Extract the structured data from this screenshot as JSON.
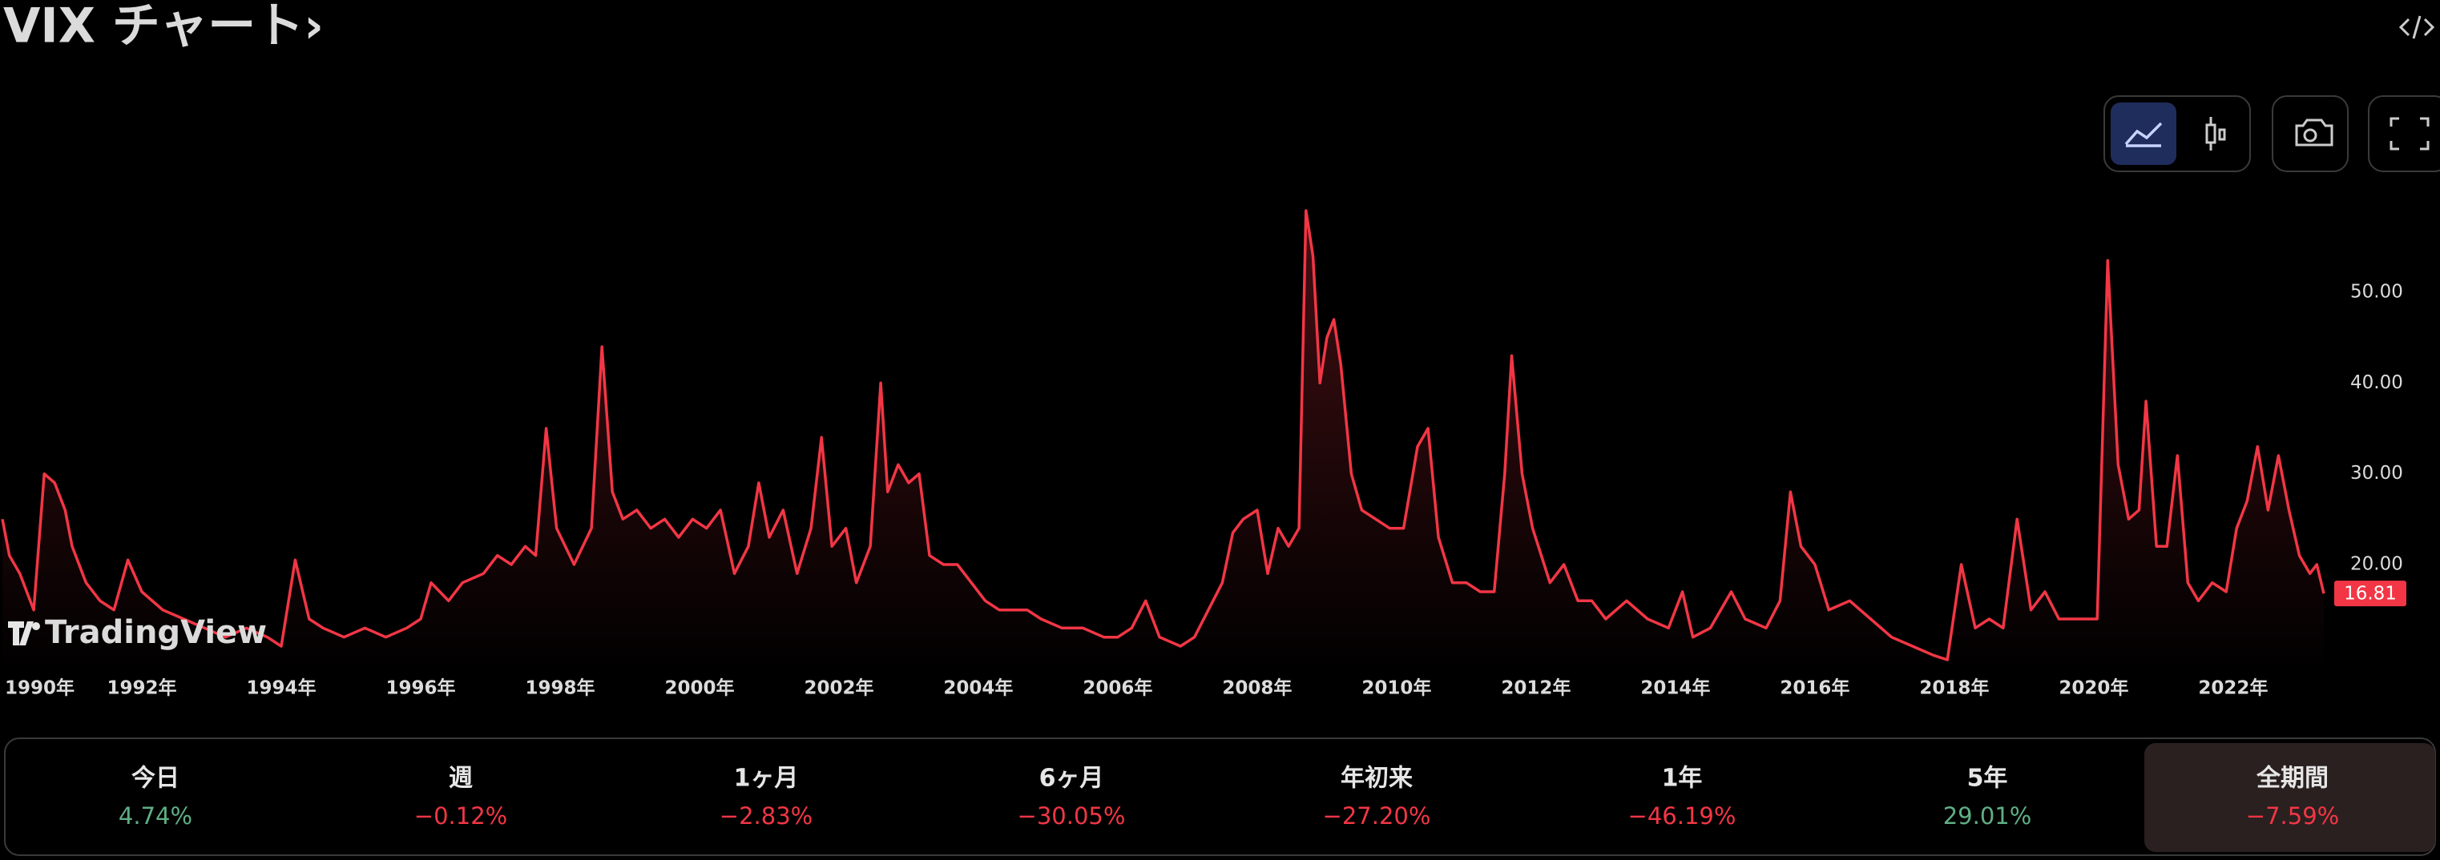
{
  "chart_data": {
    "type": "line",
    "title": "VIX チャート›",
    "watermark": "TradingView",
    "x": [
      1990.0,
      1990.1,
      1990.25,
      1990.45,
      1990.6,
      1990.75,
      1990.9,
      1991.0,
      1991.2,
      1991.4,
      1991.6,
      1991.8,
      1992.0,
      1992.3,
      1992.6,
      1992.9,
      1993.2,
      1993.5,
      1993.8,
      1994.0,
      1994.2,
      1994.4,
      1994.6,
      1994.9,
      1995.2,
      1995.5,
      1995.8,
      1996.0,
      1996.15,
      1996.4,
      1996.6,
      1996.9,
      1997.1,
      1997.3,
      1997.5,
      1997.65,
      1997.8,
      1997.95,
      1998.2,
      1998.45,
      1998.6,
      1998.75,
      1998.9,
      1999.1,
      1999.3,
      1999.5,
      1999.7,
      1999.9,
      2000.1,
      2000.3,
      2000.5,
      2000.7,
      2000.85,
      2001.0,
      2001.2,
      2001.4,
      2001.6,
      2001.75,
      2001.9,
      2002.1,
      2002.25,
      2002.45,
      2002.6,
      2002.7,
      2002.85,
      2003.0,
      2003.15,
      2003.3,
      2003.5,
      2003.7,
      2003.9,
      2004.1,
      2004.3,
      2004.5,
      2004.7,
      2004.9,
      2005.2,
      2005.5,
      2005.8,
      2006.0,
      2006.2,
      2006.4,
      2006.6,
      2006.9,
      2007.1,
      2007.3,
      2007.5,
      2007.65,
      2007.8,
      2008.0,
      2008.15,
      2008.3,
      2008.45,
      2008.6,
      2008.7,
      2008.8,
      2008.9,
      2009.0,
      2009.1,
      2009.2,
      2009.35,
      2009.5,
      2009.7,
      2009.9,
      2010.1,
      2010.3,
      2010.45,
      2010.6,
      2010.8,
      2011.0,
      2011.2,
      2011.4,
      2011.55,
      2011.65,
      2011.8,
      2011.95,
      2012.2,
      2012.4,
      2012.6,
      2012.8,
      2013.0,
      2013.3,
      2013.6,
      2013.9,
      2014.1,
      2014.25,
      2014.5,
      2014.8,
      2015.0,
      2015.3,
      2015.5,
      2015.65,
      2015.8,
      2016.0,
      2016.2,
      2016.5,
      2016.8,
      2017.1,
      2017.4,
      2017.7,
      2017.9,
      2018.1,
      2018.3,
      2018.5,
      2018.7,
      2018.9,
      2019.1,
      2019.3,
      2019.5,
      2019.7,
      2019.9,
      2020.05,
      2020.2,
      2020.35,
      2020.5,
      2020.65,
      2020.75,
      2020.9,
      2021.05,
      2021.2,
      2021.35,
      2021.5,
      2021.7,
      2021.9,
      2022.05,
      2022.2,
      2022.35,
      2022.5,
      2022.65,
      2022.8,
      2022.95,
      2023.1,
      2023.2,
      2023.3
    ],
    "series": [
      {
        "name": "VIX",
        "color": "#f23645",
        "values": [
          25,
          21,
          19,
          15,
          30,
          29,
          26,
          22,
          18,
          16,
          15,
          20.5,
          17,
          15,
          14,
          13,
          12,
          13,
          12,
          11,
          20.5,
          14,
          13,
          12,
          13,
          12,
          13,
          14,
          18,
          16,
          18,
          19,
          21,
          20,
          22,
          21,
          35,
          24,
          20,
          24,
          44,
          28,
          25,
          26,
          24,
          25,
          23,
          25,
          24,
          26,
          19,
          22,
          29,
          23,
          26,
          19,
          24,
          34,
          22,
          24,
          18,
          22,
          40,
          28,
          31,
          29,
          30,
          21,
          20,
          20,
          18,
          16,
          15,
          15,
          15,
          14,
          13,
          13,
          12,
          12,
          13,
          16,
          12,
          11,
          12,
          15,
          18,
          23.5,
          25,
          26,
          19,
          24,
          22,
          24,
          59,
          54,
          40,
          45,
          47,
          42,
          30,
          26,
          25,
          24,
          24,
          33,
          35,
          23,
          18,
          18,
          17,
          17,
          30,
          43,
          30,
          24,
          18,
          20,
          16,
          16,
          14,
          16,
          14,
          13,
          17,
          12,
          13,
          17,
          14,
          13,
          16,
          28,
          22,
          20,
          15,
          16,
          14,
          12,
          11,
          10,
          9.5,
          20,
          13,
          14,
          13,
          25,
          15,
          17,
          14,
          14,
          14,
          14,
          53.5,
          31,
          25,
          26,
          38,
          22,
          22,
          32,
          18,
          16,
          18,
          17,
          24,
          27,
          33,
          26,
          32,
          26,
          21,
          19,
          20,
          16.81
        ]
      }
    ],
    "xlim": [
      1990,
      2023.45
    ],
    "ylim": [
      8,
      65
    ],
    "xticks": [
      {
        "value": 1990,
        "label": "1990年"
      },
      {
        "value": 1992,
        "label": "1992年"
      },
      {
        "value": 1994,
        "label": "1994年"
      },
      {
        "value": 1996,
        "label": "1996年"
      },
      {
        "value": 1998,
        "label": "1998年"
      },
      {
        "value": 2000,
        "label": "2000年"
      },
      {
        "value": 2002,
        "label": "2002年"
      },
      {
        "value": 2004,
        "label": "2004年"
      },
      {
        "value": 2006,
        "label": "2006年"
      },
      {
        "value": 2008,
        "label": "2008年"
      },
      {
        "value": 2010,
        "label": "2010年"
      },
      {
        "value": 2012,
        "label": "2012年"
      },
      {
        "value": 2014,
        "label": "2014年"
      },
      {
        "value": 2016,
        "label": "2016年"
      },
      {
        "value": 2018,
        "label": "2018年"
      },
      {
        "value": 2020,
        "label": "2020年"
      },
      {
        "value": 2022,
        "label": "2022年"
      }
    ],
    "yticks": [
      {
        "value": 20,
        "label": "20.00"
      },
      {
        "value": 30,
        "label": "30.00"
      },
      {
        "value": 40,
        "label": "40.00"
      },
      {
        "value": 50,
        "label": "50.00"
      }
    ],
    "grid": false
  },
  "performance": [
    {
      "period": "今日",
      "change": "4.74%",
      "color": "#5fae85"
    },
    {
      "period": "週",
      "change": "−0.12%",
      "color": "#f23645"
    },
    {
      "period": "1ヶ月",
      "change": "−2.83%",
      "color": "#f23645"
    },
    {
      "period": "6ヶ月",
      "change": "−30.05%",
      "color": "#f23645"
    },
    {
      "period": "年初来",
      "change": "−27.20%",
      "color": "#f23645"
    },
    {
      "period": "1年",
      "change": "−46.19%",
      "color": "#f23645"
    },
    {
      "period": "5年",
      "change": "29.01%",
      "color": "#5fae85"
    },
    {
      "period": "全期間",
      "change": "−7.59%",
      "color": "#f23645",
      "selected": true
    }
  ]
}
